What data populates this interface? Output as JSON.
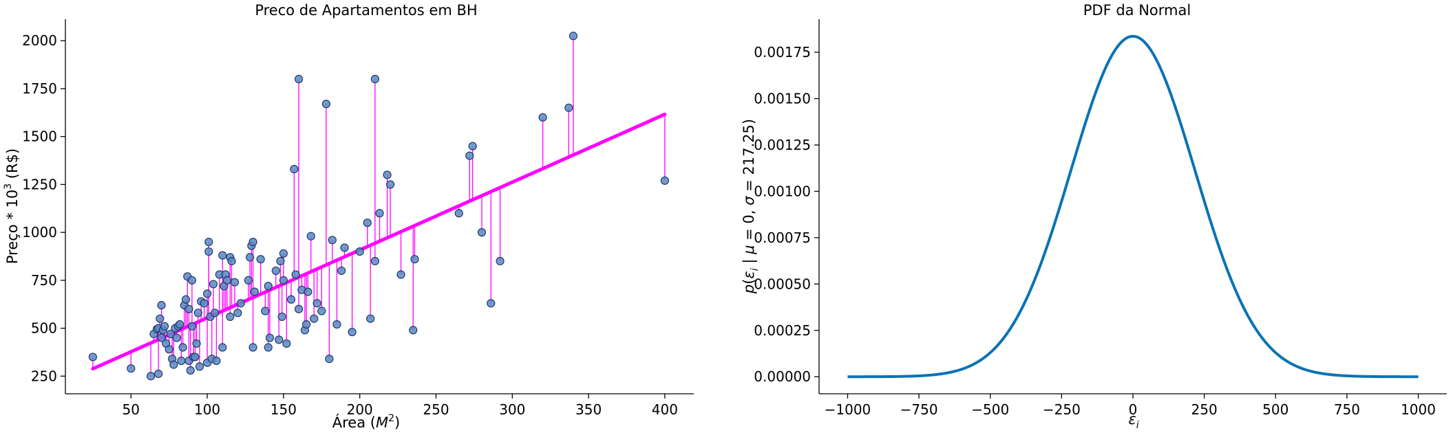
{
  "colors": {
    "points": "#5a8ac6",
    "point_edge": "#1f3a66",
    "regression": "#ff00ff",
    "pdf_line": "#0a72b6"
  },
  "chart_data": [
    {
      "type": "scatter",
      "title": "Preco de Apartamentos em BH",
      "xlabel_text": "Área (",
      "xlabel_math": "M",
      "xlabel_sup": "2",
      "xlabel_end": ")",
      "ylabel_text": "Preço * 10",
      "ylabel_sup": "3",
      "ylabel_end": " (R$)",
      "xlim": [
        7,
        419
      ],
      "ylim": [
        158,
        2112
      ],
      "xticks": [
        50,
        100,
        150,
        200,
        250,
        300,
        350,
        400
      ],
      "yticks": [
        250,
        500,
        750,
        1000,
        1250,
        1500,
        1750,
        2000
      ],
      "regression": {
        "slope": 3.54,
        "intercept": 200,
        "x_range": [
          25,
          400
        ]
      },
      "points": {
        "x": [
          25,
          50,
          63,
          65,
          67,
          68,
          68,
          69,
          70,
          70,
          71,
          72,
          73,
          75,
          76,
          77,
          78,
          79,
          80,
          81,
          82,
          83,
          84,
          85,
          86,
          87,
          88,
          88,
          89,
          90,
          90,
          91,
          92,
          93,
          94,
          95,
          96,
          98,
          100,
          100,
          101,
          101,
          102,
          103,
          104,
          105,
          106,
          108,
          110,
          110,
          111,
          112,
          113,
          115,
          115,
          116,
          118,
          120,
          122,
          127,
          128,
          129,
          130,
          130,
          131,
          135,
          138,
          140,
          140,
          141,
          145,
          147,
          148,
          149,
          150,
          150,
          152,
          155,
          157,
          158,
          160,
          160,
          162,
          164,
          165,
          166,
          168,
          170,
          172,
          175,
          178,
          180,
          182,
          185,
          188,
          190,
          195,
          200,
          205,
          207,
          210,
          210,
          213,
          218,
          220,
          227,
          235,
          236,
          265,
          272,
          274,
          280,
          286,
          292,
          320,
          337,
          340,
          400
        ],
        "y": [
          350,
          290,
          250,
          470,
          495,
          262,
          500,
          550,
          620,
          450,
          490,
          510,
          420,
          390,
          470,
          340,
          310,
          500,
          450,
          510,
          520,
          330,
          400,
          620,
          650,
          770,
          600,
          330,
          280,
          750,
          510,
          350,
          350,
          420,
          580,
          300,
          640,
          630,
          680,
          320,
          950,
          900,
          560,
          340,
          730,
          580,
          330,
          780,
          880,
          400,
          720,
          780,
          750,
          870,
          560,
          850,
          740,
          580,
          630,
          750,
          870,
          930,
          400,
          950,
          690,
          860,
          590,
          400,
          720,
          450,
          800,
          440,
          850,
          560,
          890,
          750,
          420,
          650,
          1330,
          780,
          600,
          1800,
          700,
          490,
          520,
          690,
          980,
          550,
          630,
          590,
          1670,
          340,
          960,
          520,
          800,
          920,
          480,
          900,
          1050,
          550,
          1800,
          850,
          1100,
          1300,
          1250,
          780,
          490,
          860,
          1100,
          1400,
          1450,
          1000,
          630,
          850,
          1600,
          1650,
          2025,
          1270
        ]
      }
    },
    {
      "type": "line",
      "title": "PDF da Normal",
      "mu": 0,
      "sigma": 217.25,
      "x_range": [
        -1000,
        1000
      ],
      "xlim": [
        -1100,
        1100
      ],
      "ylim": [
        -9.18e-05,
        0.001928
      ],
      "xticks": [
        -1000,
        -750,
        -500,
        -250,
        0,
        250,
        500,
        750,
        1000
      ],
      "yticks": [
        0,
        0.00025,
        0.0005,
        0.00075,
        0.001,
        0.00125,
        0.0015,
        0.00175
      ],
      "ytick_labels": [
        "0.00000",
        "0.00025",
        "0.00050",
        "0.00075",
        "0.00100",
        "0.00125",
        "0.00150",
        "0.00175"
      ],
      "xlabel_math": "ε",
      "xlabel_sub": "i",
      "ylabel_p": "p",
      "ylabel_eps": "ε",
      "ylabel_sub": "i",
      "ylabel_mu": "μ",
      "ylabel_sigma": "σ",
      "ylabel_sigma_val": "217.25"
    }
  ]
}
